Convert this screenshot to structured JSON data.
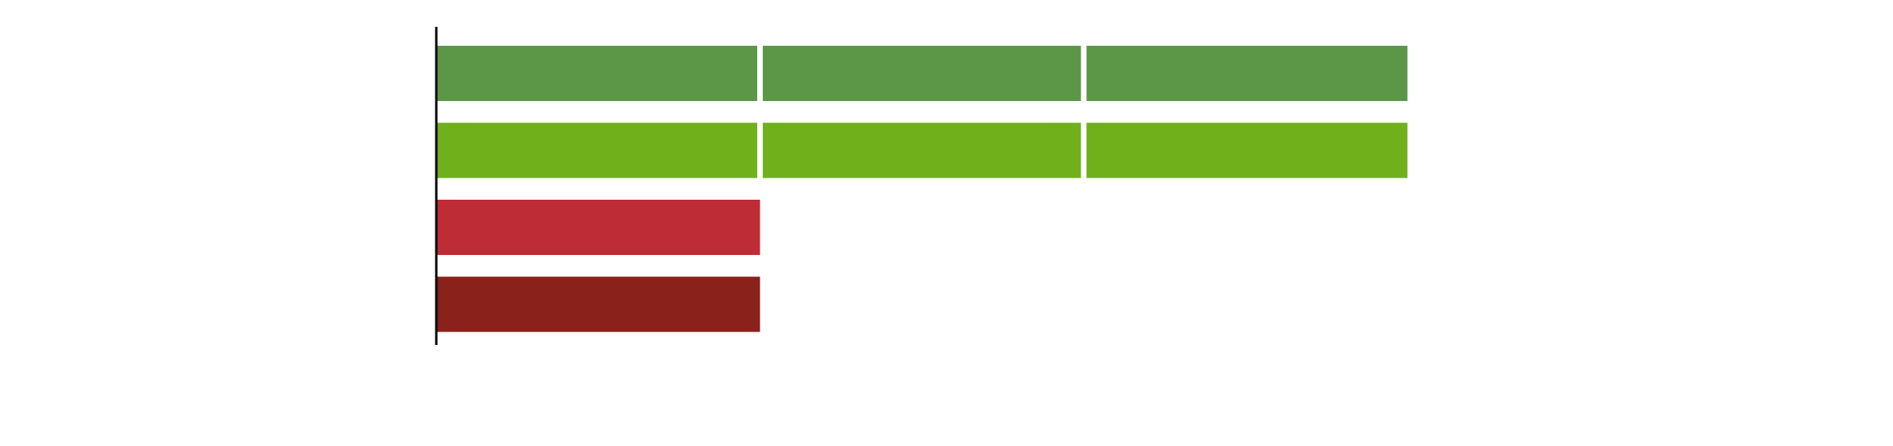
{
  "chart_data": {
    "type": "bar",
    "orientation": "horizontal",
    "stacked": true,
    "categories": [
      "",
      "",
      "",
      ""
    ],
    "segments": [
      [
        1,
        1,
        1
      ],
      [
        1,
        1,
        1
      ],
      [
        1
      ],
      [
        1
      ]
    ],
    "colors": [
      "#5c9748",
      "#70b01b",
      "#be2c35",
      "#8a221b"
    ],
    "segment_separator_color": "#ffffff",
    "xlim": [
      0,
      4.5
    ],
    "grid": false,
    "legend": "none",
    "title": "",
    "xlabel": "",
    "ylabel": ""
  }
}
